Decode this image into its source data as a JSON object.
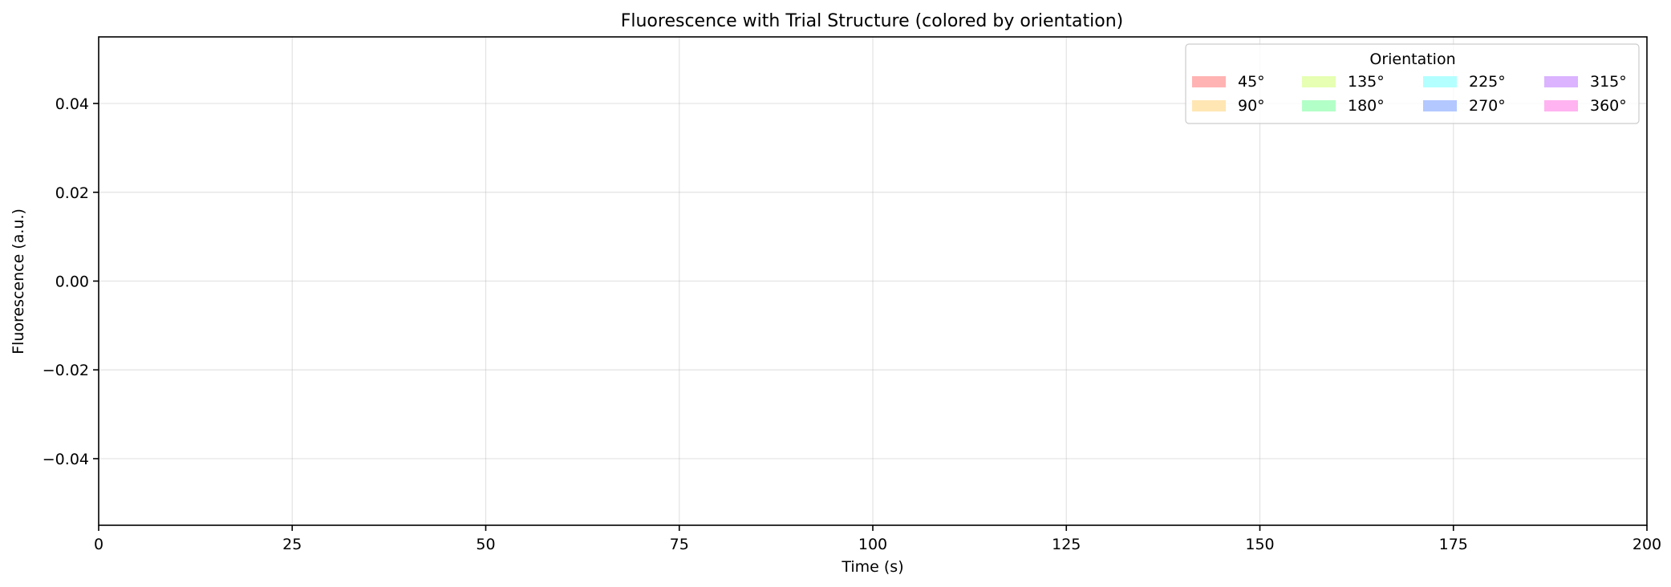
{
  "chart_data": {
    "type": "line",
    "title": "Fluorescence with Trial Structure (colored by orientation)",
    "xlabel": "Time (s)",
    "ylabel": "Fluorescence (a.u.)",
    "xlim": [
      0,
      200
    ],
    "ylim": [
      -0.055,
      0.055
    ],
    "xticks": [
      0,
      25,
      50,
      75,
      100,
      125,
      150,
      175,
      200
    ],
    "yticks": [
      -0.04,
      -0.02,
      0.0,
      0.02,
      0.04
    ],
    "xtick_labels": [
      "0",
      "25",
      "50",
      "75",
      "100",
      "125",
      "150",
      "175",
      "200"
    ],
    "ytick_labels": [
      "−0.04",
      "−0.02",
      "0.00",
      "0.02",
      "0.04"
    ],
    "grid": true,
    "series": [],
    "legend": {
      "title": "Orientation",
      "placement": "top-right",
      "columns": 4,
      "entries": [
        {
          "label": "45°",
          "color": "#ffb3b3"
        },
        {
          "label": "90°",
          "color": "#ffe6b3"
        },
        {
          "label": "135°",
          "color": "#e6ffb3"
        },
        {
          "label": "180°",
          "color": "#b3ffc8"
        },
        {
          "label": "225°",
          "color": "#b3ffff"
        },
        {
          "label": "270°",
          "color": "#b3c8ff"
        },
        {
          "label": "315°",
          "color": "#dbb3ff"
        },
        {
          "label": "360°",
          "color": "#ffb3f0"
        }
      ]
    }
  }
}
